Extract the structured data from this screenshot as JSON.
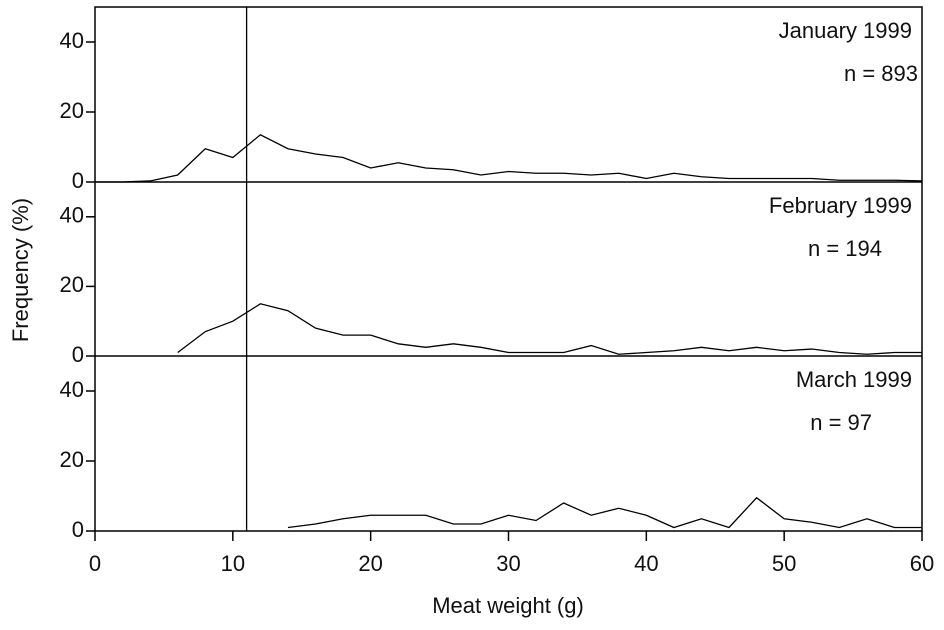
{
  "chart_data": [
    {
      "type": "line",
      "title": "January 1999",
      "annotation": "n = 893",
      "color": "#000000",
      "vline": 11,
      "x": [
        0,
        2,
        4,
        6,
        8,
        10,
        12,
        14,
        16,
        18,
        20,
        22,
        24,
        26,
        28,
        30,
        32,
        34,
        36,
        38,
        40,
        42,
        44,
        46,
        48,
        50,
        52,
        54,
        56,
        58,
        60
      ],
      "values": [
        0,
        0,
        0.3,
        2,
        9.5,
        7,
        13.5,
        9.5,
        8,
        7,
        4,
        5.5,
        4,
        3.5,
        2,
        3,
        2.5,
        2.5,
        2,
        2.5,
        1,
        2.5,
        1.5,
        1,
        1,
        1,
        1,
        0.5,
        0.5,
        0.5,
        0.3
      ],
      "ylim": [
        0,
        50
      ],
      "yticks": [
        0,
        20,
        40
      ]
    },
    {
      "type": "line",
      "title": "February 1999",
      "annotation": "n = 194",
      "color": "#000000",
      "vline": 11,
      "ylabel": "Frequency (%)",
      "x": [
        0,
        2,
        4,
        6,
        8,
        10,
        12,
        14,
        16,
        18,
        20,
        22,
        24,
        26,
        28,
        30,
        32,
        34,
        36,
        38,
        40,
        42,
        44,
        46,
        48,
        50,
        52,
        54,
        56,
        58,
        60
      ],
      "values": [
        null,
        null,
        null,
        1,
        7,
        10,
        15,
        13,
        8,
        6,
        6,
        3.5,
        2.5,
        3.5,
        2.5,
        1,
        1,
        1,
        3,
        0.5,
        1,
        1.5,
        2.5,
        1.5,
        2.5,
        1.5,
        2,
        1,
        0.5,
        1,
        1
      ],
      "ylim": [
        0,
        50
      ],
      "yticks": [
        0,
        20,
        40
      ]
    },
    {
      "type": "line",
      "title": "March 1999",
      "annotation": "n = 97",
      "color": "#000000",
      "vline": 11,
      "xlabel": "Meat weight (g)",
      "xlim": [
        0,
        60
      ],
      "xticks": [
        0,
        10,
        20,
        30,
        40,
        50,
        60
      ],
      "x": [
        0,
        2,
        4,
        6,
        8,
        10,
        12,
        14,
        16,
        18,
        20,
        22,
        24,
        26,
        28,
        30,
        32,
        34,
        36,
        38,
        40,
        42,
        44,
        46,
        48,
        50,
        52,
        54,
        56,
        58,
        60
      ],
      "values": [
        null,
        null,
        null,
        null,
        null,
        null,
        null,
        1,
        2,
        3.5,
        4.5,
        4.5,
        4.5,
        2,
        2,
        4.5,
        3,
        8,
        4.5,
        6.5,
        4.5,
        1,
        3.5,
        1,
        9.5,
        3.5,
        2.5,
        1,
        3.5,
        1,
        1
      ],
      "ylim": [
        0,
        50
      ],
      "yticks": [
        0,
        20,
        40
      ]
    }
  ]
}
